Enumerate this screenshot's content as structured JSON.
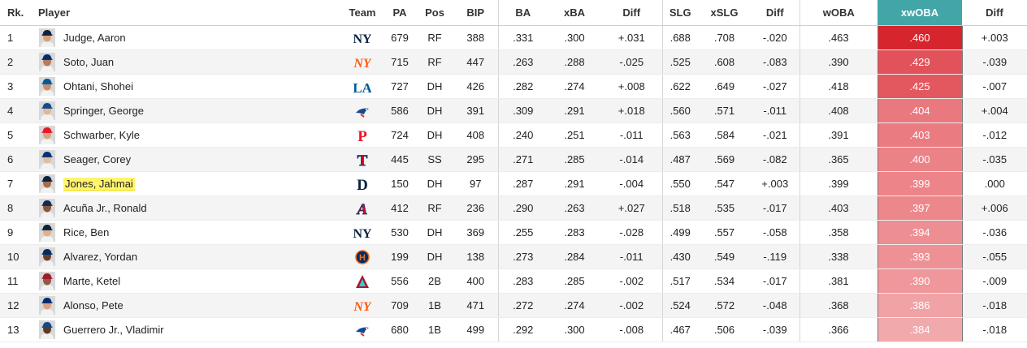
{
  "headers": {
    "rk": "Rk.",
    "player": "Player",
    "team": "Team",
    "pa": "PA",
    "pos": "Pos",
    "bip": "BIP",
    "ba": "BA",
    "xba": "xBA",
    "diff1": "Diff",
    "slg": "SLG",
    "xslg": "xSLG",
    "diff2": "Diff",
    "woba": "wOBA",
    "xwoba": "xwOBA",
    "diff3": "Diff"
  },
  "rows": [
    {
      "rk": "1",
      "name": "Judge, Aaron",
      "team": "NYY",
      "team_icon": "yankees-logo-icon",
      "pa": "679",
      "pos": "RF",
      "bip": "388",
      "ba": ".331",
      "xba": ".300",
      "diff1": "+.031",
      "slg": ".688",
      "xslg": ".708",
      "diff2": "-.020",
      "woba": ".463",
      "xwoba": ".460",
      "diff3": "+.003",
      "xwoba_color": "#d7252d"
    },
    {
      "rk": "2",
      "name": "Soto, Juan",
      "team": "NYM",
      "team_icon": "mets-logo-icon",
      "pa": "715",
      "pos": "RF",
      "bip": "447",
      "ba": ".263",
      "xba": ".288",
      "diff1": "-.025",
      "slg": ".525",
      "xslg": ".608",
      "diff2": "-.083",
      "woba": ".390",
      "xwoba": ".429",
      "diff3": "-.039",
      "xwoba_color": "#e2525a"
    },
    {
      "rk": "3",
      "name": "Ohtani, Shohei",
      "team": "LAD",
      "team_icon": "dodgers-logo-icon",
      "pa": "727",
      "pos": "DH",
      "bip": "426",
      "ba": ".282",
      "xba": ".274",
      "diff1": "+.008",
      "slg": ".622",
      "xslg": ".649",
      "diff2": "-.027",
      "woba": ".418",
      "xwoba": ".425",
      "diff3": "-.007",
      "xwoba_color": "#e3585f"
    },
    {
      "rk": "4",
      "name": "Springer, George",
      "team": "TOR",
      "team_icon": "bluejays-logo-icon",
      "pa": "586",
      "pos": "DH",
      "bip": "391",
      "ba": ".309",
      "xba": ".291",
      "diff1": "+.018",
      "slg": ".560",
      "xslg": ".571",
      "diff2": "-.011",
      "woba": ".408",
      "xwoba": ".404",
      "diff3": "+.004",
      "xwoba_color": "#e9797e"
    },
    {
      "rk": "5",
      "name": "Schwarber, Kyle",
      "team": "PHI",
      "team_icon": "phillies-logo-icon",
      "pa": "724",
      "pos": "DH",
      "bip": "408",
      "ba": ".240",
      "xba": ".251",
      "diff1": "-.011",
      "slg": ".563",
      "xslg": ".584",
      "diff2": "-.021",
      "woba": ".391",
      "xwoba": ".403",
      "diff3": "-.012",
      "xwoba_color": "#ea7b80"
    },
    {
      "rk": "6",
      "name": "Seager, Corey",
      "team": "TEX",
      "team_icon": "rangers-logo-icon",
      "pa": "445",
      "pos": "SS",
      "bip": "295",
      "ba": ".271",
      "xba": ".285",
      "diff1": "-.014",
      "slg": ".487",
      "xslg": ".569",
      "diff2": "-.082",
      "woba": ".365",
      "xwoba": ".400",
      "diff3": "-.035",
      "xwoba_color": "#eb8287"
    },
    {
      "rk": "7",
      "name": "Jones, Jahmai",
      "team": "DET",
      "team_icon": "tigers-logo-icon",
      "pa": "150",
      "pos": "DH",
      "bip": "97",
      "ba": ".287",
      "xba": ".291",
      "diff1": "-.004",
      "slg": ".550",
      "xslg": ".547",
      "diff2": "+.003",
      "woba": ".399",
      "xwoba": ".399",
      "diff3": ".000",
      "xwoba_color": "#ec8489"
    },
    {
      "rk": "8",
      "name": "Acuña Jr., Ronald",
      "team": "ATL",
      "team_icon": "braves-logo-icon",
      "pa": "412",
      "pos": "RF",
      "bip": "236",
      "ba": ".290",
      "xba": ".263",
      "diff1": "+.027",
      "slg": ".518",
      "xslg": ".535",
      "diff2": "-.017",
      "woba": ".403",
      "xwoba": ".397",
      "diff3": "+.006",
      "xwoba_color": "#ec888c"
    },
    {
      "rk": "9",
      "name": "Rice, Ben",
      "team": "NYY",
      "team_icon": "yankees-logo-icon",
      "pa": "530",
      "pos": "DH",
      "bip": "369",
      "ba": ".255",
      "xba": ".283",
      "diff1": "-.028",
      "slg": ".499",
      "xslg": ".557",
      "diff2": "-.058",
      "woba": ".358",
      "xwoba": ".394",
      "diff3": "-.036",
      "xwoba_color": "#ed8e92"
    },
    {
      "rk": "10",
      "name": "Alvarez, Yordan",
      "team": "HOU",
      "team_icon": "astros-logo-icon",
      "pa": "199",
      "pos": "DH",
      "bip": "138",
      "ba": ".273",
      "xba": ".284",
      "diff1": "-.011",
      "slg": ".430",
      "xslg": ".549",
      "diff2": "-.119",
      "woba": ".338",
      "xwoba": ".393",
      "diff3": "-.055",
      "xwoba_color": "#ee9195"
    },
    {
      "rk": "11",
      "name": "Marte, Ketel",
      "team": "ARI",
      "team_icon": "diamondbacks-logo-icon",
      "pa": "556",
      "pos": "2B",
      "bip": "400",
      "ba": ".283",
      "xba": ".285",
      "diff1": "-.002",
      "slg": ".517",
      "xslg": ".534",
      "diff2": "-.017",
      "woba": ".381",
      "xwoba": ".390",
      "diff3": "-.009",
      "xwoba_color": "#ef979b"
    },
    {
      "rk": "12",
      "name": "Alonso, Pete",
      "team": "NYM",
      "team_icon": "mets-logo-icon",
      "pa": "709",
      "pos": "1B",
      "bip": "471",
      "ba": ".272",
      "xba": ".274",
      "diff1": "-.002",
      "slg": ".524",
      "xslg": ".572",
      "diff2": "-.048",
      "woba": ".368",
      "xwoba": ".386",
      "diff3": "-.018",
      "xwoba_color": "#f0a2a5"
    },
    {
      "rk": "13",
      "name": "Guerrero Jr., Vladimir",
      "team": "TOR",
      "team_icon": "bluejays-logo-icon",
      "pa": "680",
      "pos": "1B",
      "bip": "499",
      "ba": ".292",
      "xba": ".300",
      "diff1": "-.008",
      "slg": ".467",
      "xslg": ".506",
      "diff2": "-.039",
      "woba": ".366",
      "xwoba": ".384",
      "diff3": "-.018",
      "xwoba_color": "#f2a9ac"
    }
  ],
  "highlighted_row_index": 6,
  "colors": {
    "xwoba_header_bg": "#42a5a8",
    "highlight": "#fff46a",
    "stripe": "#f4f4f4"
  }
}
